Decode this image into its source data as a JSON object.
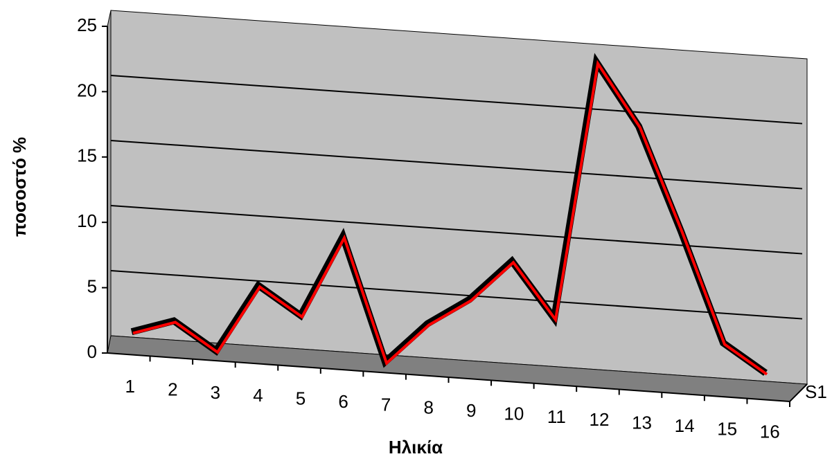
{
  "chart_data": {
    "type": "line",
    "x_label": "Ηλικία",
    "y_label": "ποσοστό %",
    "categories": [
      "1",
      "2",
      "3",
      "4",
      "5",
      "6",
      "7",
      "8",
      "9",
      "10",
      "11",
      "12",
      "13",
      "14",
      "15",
      "16"
    ],
    "series": [
      {
        "name": "S1",
        "color": "#ff0000",
        "values": [
          1,
          2,
          0,
          5,
          3,
          9,
          0,
          3,
          5,
          8,
          4,
          23,
          18.5,
          11,
          3,
          1
        ]
      }
    ],
    "ylim": [
      0,
      25
    ],
    "yticks": [
      0,
      5,
      10,
      15,
      20,
      25
    ],
    "grid": true
  }
}
